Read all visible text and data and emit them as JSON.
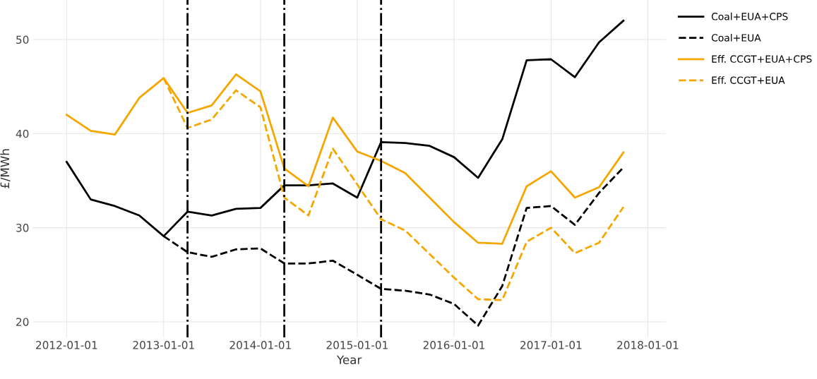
{
  "chart_data": {
    "type": "line",
    "xlabel": "Year",
    "ylabel": "£/MWh",
    "x": [
      "2012-01-01",
      "2012-04-01",
      "2012-07-01",
      "2012-10-01",
      "2013-01-01",
      "2013-04-01",
      "2013-07-01",
      "2013-10-01",
      "2014-01-01",
      "2014-04-01",
      "2014-07-01",
      "2014-10-01",
      "2015-01-01",
      "2015-04-01",
      "2015-07-01",
      "2015-10-01",
      "2016-01-01",
      "2016-04-01",
      "2016-07-01",
      "2016-10-01",
      "2017-01-01",
      "2017-04-01",
      "2017-07-01",
      "2017-10-01"
    ],
    "series": [
      {
        "name": "Coal+EUA+CPS",
        "color": "#000000",
        "line_style": "solid",
        "values": [
          37.0,
          33.0,
          32.3,
          31.3,
          29.1,
          31.7,
          31.3,
          32.0,
          32.1,
          34.5,
          34.5,
          34.7,
          33.2,
          39.1,
          39.0,
          38.7,
          37.5,
          35.3,
          39.4,
          47.8,
          47.9,
          46.0,
          49.7,
          52.0
        ]
      },
      {
        "name": "Coal+EUA",
        "color": "#000000",
        "line_style": "dashed",
        "values": [
          null,
          null,
          null,
          null,
          29.1,
          27.4,
          26.9,
          27.7,
          27.8,
          26.2,
          26.2,
          26.5,
          25.0,
          23.5,
          23.3,
          22.9,
          21.9,
          19.6,
          23.8,
          32.1,
          32.3,
          30.3,
          33.7,
          36.4
        ]
      },
      {
        "name": "Eff. CCGT+EUA+CPS",
        "color": "#f5a700",
        "line_style": "solid",
        "values": [
          42.0,
          40.3,
          39.9,
          43.8,
          45.9,
          42.2,
          43.0,
          46.3,
          44.5,
          36.3,
          34.4,
          41.7,
          38.1,
          37.1,
          35.8,
          33.2,
          30.6,
          28.4,
          28.3,
          34.4,
          36.0,
          33.2,
          34.3,
          38.0
        ]
      },
      {
        "name": "Eff. CCGT+EUA",
        "color": "#f5a700",
        "line_style": "dashed",
        "values": [
          null,
          null,
          null,
          null,
          45.9,
          40.6,
          41.5,
          44.6,
          42.8,
          33.2,
          31.3,
          38.4,
          34.6,
          30.9,
          29.7,
          27.2,
          24.7,
          22.4,
          22.3,
          28.5,
          30.0,
          27.3,
          28.4,
          32.2
        ]
      }
    ],
    "ref_lines": [
      {
        "axis": "x",
        "value": "2013-04-01",
        "color": "#000000",
        "line_style": "dashdot"
      },
      {
        "axis": "x",
        "value": "2014-04-01",
        "color": "#000000",
        "line_style": "dashdot"
      },
      {
        "axis": "x",
        "value": "2015-04-01",
        "color": "#000000",
        "line_style": "dashdot"
      }
    ],
    "xlim": [
      "2011-08-26",
      "2018-03-10"
    ],
    "xticks": [
      "2012-01-01",
      "2013-01-01",
      "2014-01-01",
      "2015-01-01",
      "2016-01-01",
      "2017-01-01",
      "2018-01-01"
    ],
    "ylim": [
      18.35,
      54.2
    ],
    "yticks": [
      20,
      30,
      40,
      50
    ],
    "grid": true,
    "legend": "top right",
    "marker": "none"
  }
}
